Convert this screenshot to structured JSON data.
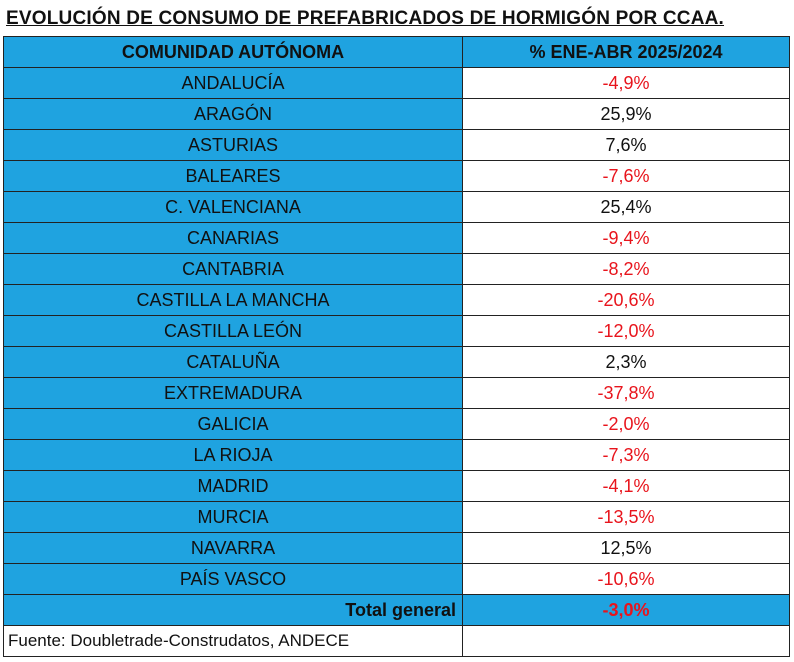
{
  "title": "EVOLUCIÓN DE CONSUMO DE PREFABRICADOS DE HORMIGÓN POR CCAA.",
  "table": {
    "header": [
      "COMUNIDAD AUTÓNOMA",
      "% ENE-ABR 2025/2024"
    ],
    "rows": [
      [
        "ANDALUCÍA",
        "-4,9%"
      ],
      [
        "ARAGÓN",
        "25,9%"
      ],
      [
        "ASTURIAS",
        "7,6%"
      ],
      [
        "BALEARES",
        "-7,6%"
      ],
      [
        "C. VALENCIANA",
        "25,4%"
      ],
      [
        "CANARIAS",
        "-9,4%"
      ],
      [
        "CANTABRIA",
        "-8,2%"
      ],
      [
        "CASTILLA LA MANCHA",
        "-20,6%"
      ],
      [
        "CASTILLA LEÓN",
        "-12,0%"
      ],
      [
        "CATALUÑA",
        "2,3%"
      ],
      [
        "EXTREMADURA",
        "-37,8%"
      ],
      [
        "GALICIA",
        "-2,0%"
      ],
      [
        "LA RIOJA",
        "-7,3%"
      ],
      [
        "MADRID",
        "-4,1%"
      ],
      [
        "MURCIA",
        "-13,5%"
      ],
      [
        "NAVARRA",
        "12,5%"
      ],
      [
        "PAÍS VASCO",
        "-10,6%"
      ]
    ],
    "total": [
      "Total general",
      "-3,0%"
    ]
  },
  "source": "Fuente: Doubletrade-Construdatos, ANDECE"
}
